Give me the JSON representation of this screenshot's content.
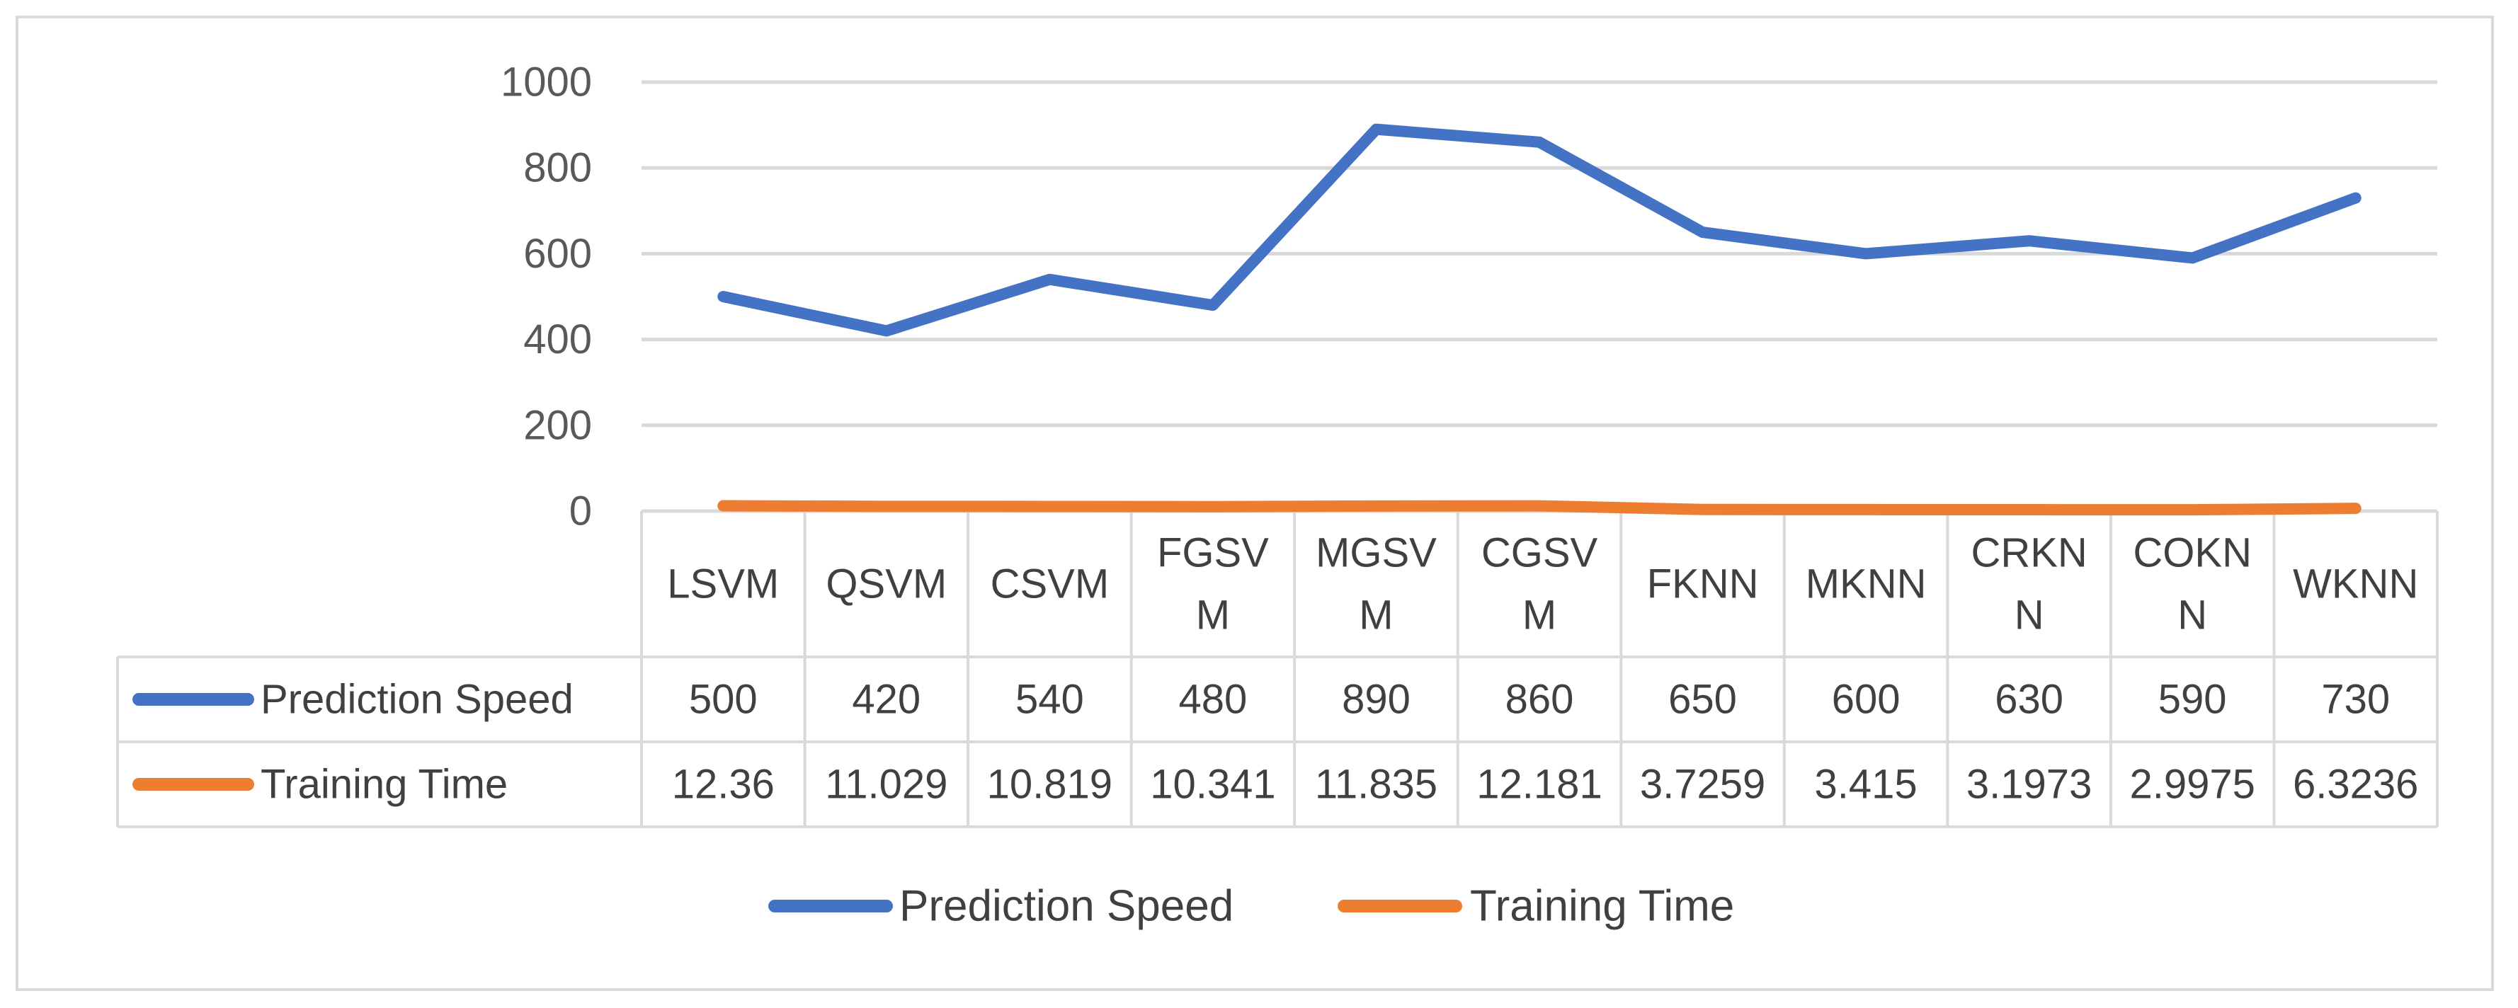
{
  "chart_data": {
    "type": "line",
    "categories": [
      "LSVM",
      "QSVM",
      "CSVM",
      "FGSVM",
      "MGSVM",
      "CGSVM",
      "FKNN",
      "MKNN",
      "CRKNN",
      "COKNN",
      "WKNN"
    ],
    "category_lines": [
      [
        "LSVM"
      ],
      [
        "QSVM"
      ],
      [
        "CSVM"
      ],
      [
        "FGSV",
        "M"
      ],
      [
        "MGSV",
        "M"
      ],
      [
        "CGSV",
        "M"
      ],
      [
        "FKNN"
      ],
      [
        "MKNN"
      ],
      [
        "CRKN",
        "N"
      ],
      [
        "COKN",
        "N"
      ],
      [
        "WKNN"
      ]
    ],
    "series": [
      {
        "name": "Prediction Speed",
        "color": "#4472c4",
        "values": [
          500,
          420,
          540,
          480,
          890,
          860,
          650,
          600,
          630,
          590,
          730
        ],
        "labels": [
          "500",
          "420",
          "540",
          "480",
          "890",
          "860",
          "650",
          "600",
          "630",
          "590",
          "730"
        ]
      },
      {
        "name": "Training Time",
        "color": "#ed7d31",
        "values": [
          12.36,
          11.029,
          10.819,
          10.341,
          11.835,
          12.181,
          3.7259,
          3.415,
          3.1973,
          2.9975,
          6.3236
        ],
        "labels": [
          "12.36",
          "11.029",
          "10.819",
          "10.341",
          "11.835",
          "12.181",
          "3.7259",
          "3.415",
          "3.1973",
          "2.9975",
          "6.3236"
        ]
      }
    ],
    "y_ticks": [
      0,
      200,
      400,
      600,
      800,
      1000
    ],
    "ylim": [
      0,
      1000
    ],
    "grid": true,
    "data_table": true,
    "legend": "bottom-center",
    "title": "",
    "xlabel": "",
    "ylabel": ""
  }
}
